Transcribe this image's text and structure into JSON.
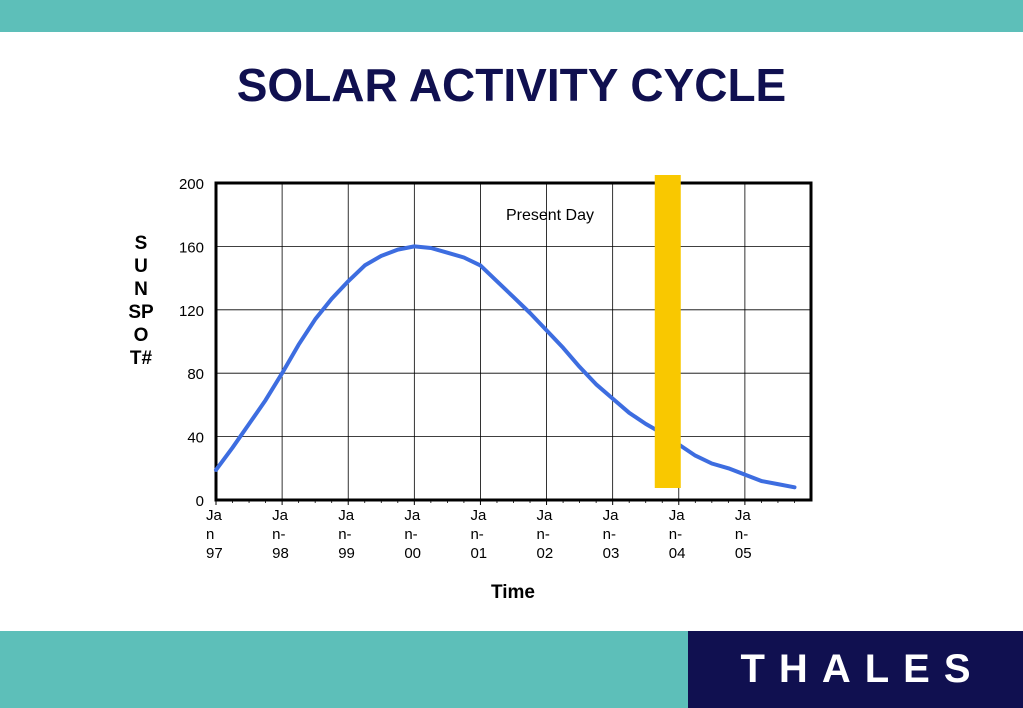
{
  "slide": {
    "title": "SOLAR ACTIVITY CYCLE",
    "logo_text": "THALES"
  },
  "colors": {
    "band": "#5dbfb9",
    "title": "#101050",
    "logo_bg": "#101050",
    "series": "#3d6de0",
    "highlight": "#f9c800"
  },
  "chart_data": {
    "type": "line",
    "title": "SOLAR ACTIVITY CYCLE",
    "xlabel": "Time",
    "ylabel": "SUNSPOT#",
    "ylim": [
      0,
      200
    ],
    "yticks": [
      0,
      40,
      80,
      120,
      160,
      200
    ],
    "xlim": [
      "1997-01",
      "2005-12"
    ],
    "xticks": [
      "Jan 97",
      "Jan-98",
      "Jan-99",
      "Jan-00",
      "Jan-01",
      "Jan-02",
      "Jan-03",
      "Jan-04",
      "Jan-05"
    ],
    "xtick_labels": [
      [
        "Ja",
        "n",
        "97"
      ],
      [
        "Ja",
        "n-",
        "98"
      ],
      [
        "Ja",
        "n-",
        "99"
      ],
      [
        "Ja",
        "n-",
        "00"
      ],
      [
        "Ja",
        "n-",
        "01"
      ],
      [
        "Ja",
        "n-",
        "02"
      ],
      [
        "Ja",
        "n-",
        "03"
      ],
      [
        "Ja",
        "n-",
        "04"
      ],
      [
        "Ja",
        "n-",
        "05"
      ]
    ],
    "grid": true,
    "annotation": {
      "text": "Present Day",
      "date": "2003-11"
    },
    "series": [
      {
        "x": [
          "1997-01",
          "1997-04",
          "1997-07",
          "1997-10",
          "1998-01",
          "1998-04",
          "1998-07",
          "1998-10",
          "1999-01",
          "1999-04",
          "1999-07",
          "1999-10",
          "2000-01",
          "2000-04",
          "2000-07",
          "2000-10",
          "2001-01",
          "2001-04",
          "2001-07",
          "2001-10",
          "2002-01",
          "2002-04",
          "2002-07",
          "2002-10",
          "2003-01",
          "2003-04",
          "2003-07",
          "2003-10",
          "2004-01",
          "2004-04",
          "2004-07",
          "2004-10",
          "2005-01",
          "2005-04",
          "2005-07",
          "2005-10"
        ],
        "values": [
          19,
          33,
          48,
          63,
          80,
          98,
          114,
          127,
          138,
          148,
          154,
          158,
          160,
          159,
          156,
          153,
          148,
          138,
          128,
          118,
          107,
          96,
          84,
          73,
          64,
          55,
          48,
          42,
          35,
          28,
          23,
          20,
          16,
          12,
          10,
          8
        ]
      }
    ]
  }
}
